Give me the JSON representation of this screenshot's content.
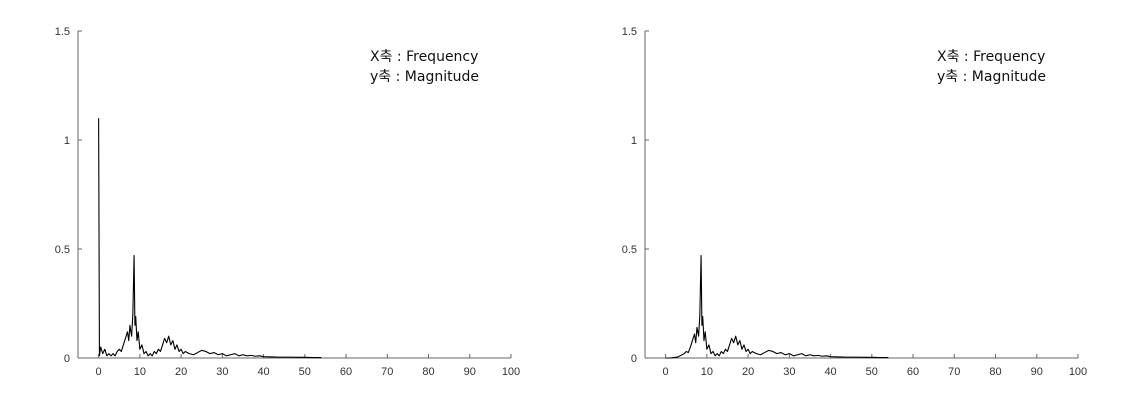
{
  "chart_data": [
    {
      "type": "line",
      "title": "",
      "xlabel": "",
      "ylabel": "",
      "xlim": [
        -5,
        100
      ],
      "ylim": [
        0,
        1.5
      ],
      "xticks": [
        "0",
        "10",
        "20",
        "30",
        "40",
        "50",
        "60",
        "70",
        "80",
        "90",
        "100"
      ],
      "yticks": [
        "0",
        "0.5",
        "1",
        "1.5"
      ],
      "annotations": [
        "X축 : Frequency",
        "y축 : Magnitude"
      ],
      "grid": false,
      "series": [
        {
          "color": "#000000",
          "x": [
            0.0,
            0.2,
            0.5,
            1.0,
            1.5,
            2.0,
            2.5,
            3.0,
            3.5,
            4.0,
            4.5,
            5.0,
            5.5,
            6.0,
            6.5,
            7.0,
            7.3,
            7.6,
            8.0,
            8.3,
            8.6,
            8.8,
            9.0,
            9.3,
            9.6,
            10.0,
            10.5,
            11.0,
            11.5,
            12.0,
            12.5,
            13.0,
            13.5,
            14.0,
            14.5,
            15.0,
            15.5,
            16.0,
            16.5,
            17.0,
            17.5,
            18.0,
            18.5,
            19.0,
            19.5,
            20.0,
            20.5,
            21.0,
            22.0,
            23.0,
            24.0,
            25.0,
            26.0,
            27.0,
            28.0,
            29.0,
            30.0,
            31.0,
            32.0,
            33.0,
            34.0,
            35.0,
            36.0,
            37.0,
            38.0,
            39.0,
            40.0,
            42.0,
            44.0,
            46.0,
            48.0,
            50.0,
            52.0,
            54.0
          ],
          "y": [
            1.1,
            0.01,
            0.05,
            0.02,
            0.04,
            0.01,
            0.02,
            0.01,
            0.02,
            0.01,
            0.03,
            0.04,
            0.03,
            0.06,
            0.09,
            0.12,
            0.08,
            0.15,
            0.1,
            0.2,
            0.47,
            0.15,
            0.19,
            0.08,
            0.12,
            0.04,
            0.06,
            0.02,
            0.03,
            0.01,
            0.02,
            0.01,
            0.03,
            0.02,
            0.04,
            0.03,
            0.06,
            0.09,
            0.07,
            0.1,
            0.06,
            0.08,
            0.04,
            0.06,
            0.03,
            0.04,
            0.02,
            0.03,
            0.02,
            0.015,
            0.025,
            0.035,
            0.03,
            0.02,
            0.025,
            0.015,
            0.02,
            0.01,
            0.015,
            0.02,
            0.01,
            0.015,
            0.01,
            0.012,
            0.008,
            0.01,
            0.006,
            0.005,
            0.004,
            0.004,
            0.003,
            0.003,
            0.002,
            0.002
          ]
        }
      ]
    },
    {
      "type": "line",
      "title": "",
      "xlabel": "",
      "ylabel": "",
      "xlim": [
        -5,
        100
      ],
      "ylim": [
        0,
        1.5
      ],
      "xticks": [
        "0",
        "10",
        "20",
        "30",
        "40",
        "50",
        "60",
        "70",
        "80",
        "90",
        "100"
      ],
      "yticks": [
        "0",
        "0.5",
        "1",
        "1.5"
      ],
      "annotations": [
        "X축 : Frequency",
        "y축 : Magnitude"
      ],
      "grid": false,
      "series": [
        {
          "color": "#000000",
          "x": [
            0.0,
            1.0,
            2.0,
            3.0,
            3.5,
            4.0,
            4.5,
            5.0,
            5.5,
            6.0,
            6.5,
            7.0,
            7.3,
            7.6,
            8.0,
            8.3,
            8.6,
            8.8,
            9.0,
            9.3,
            9.6,
            10.0,
            10.5,
            11.0,
            11.5,
            12.0,
            12.5,
            13.0,
            13.5,
            14.0,
            14.5,
            15.0,
            15.5,
            16.0,
            16.5,
            17.0,
            17.5,
            18.0,
            18.5,
            19.0,
            19.5,
            20.0,
            20.5,
            21.0,
            22.0,
            23.0,
            24.0,
            25.0,
            26.0,
            27.0,
            28.0,
            29.0,
            30.0,
            31.0,
            32.0,
            33.0,
            34.0,
            35.0,
            36.0,
            37.0,
            38.0,
            39.0,
            40.0,
            42.0,
            44.0,
            46.0,
            48.0,
            50.0,
            52.0,
            54.0
          ],
          "y": [
            0.0,
            0.0,
            0.002,
            0.005,
            0.01,
            0.015,
            0.02,
            0.03,
            0.025,
            0.05,
            0.08,
            0.11,
            0.07,
            0.14,
            0.1,
            0.2,
            0.47,
            0.15,
            0.19,
            0.08,
            0.12,
            0.04,
            0.06,
            0.02,
            0.03,
            0.01,
            0.02,
            0.01,
            0.03,
            0.02,
            0.04,
            0.03,
            0.06,
            0.09,
            0.07,
            0.1,
            0.06,
            0.08,
            0.04,
            0.06,
            0.03,
            0.04,
            0.02,
            0.03,
            0.02,
            0.015,
            0.025,
            0.035,
            0.03,
            0.02,
            0.025,
            0.015,
            0.02,
            0.01,
            0.015,
            0.02,
            0.01,
            0.015,
            0.01,
            0.012,
            0.008,
            0.01,
            0.006,
            0.005,
            0.004,
            0.004,
            0.003,
            0.003,
            0.002,
            0.002
          ]
        }
      ]
    }
  ]
}
